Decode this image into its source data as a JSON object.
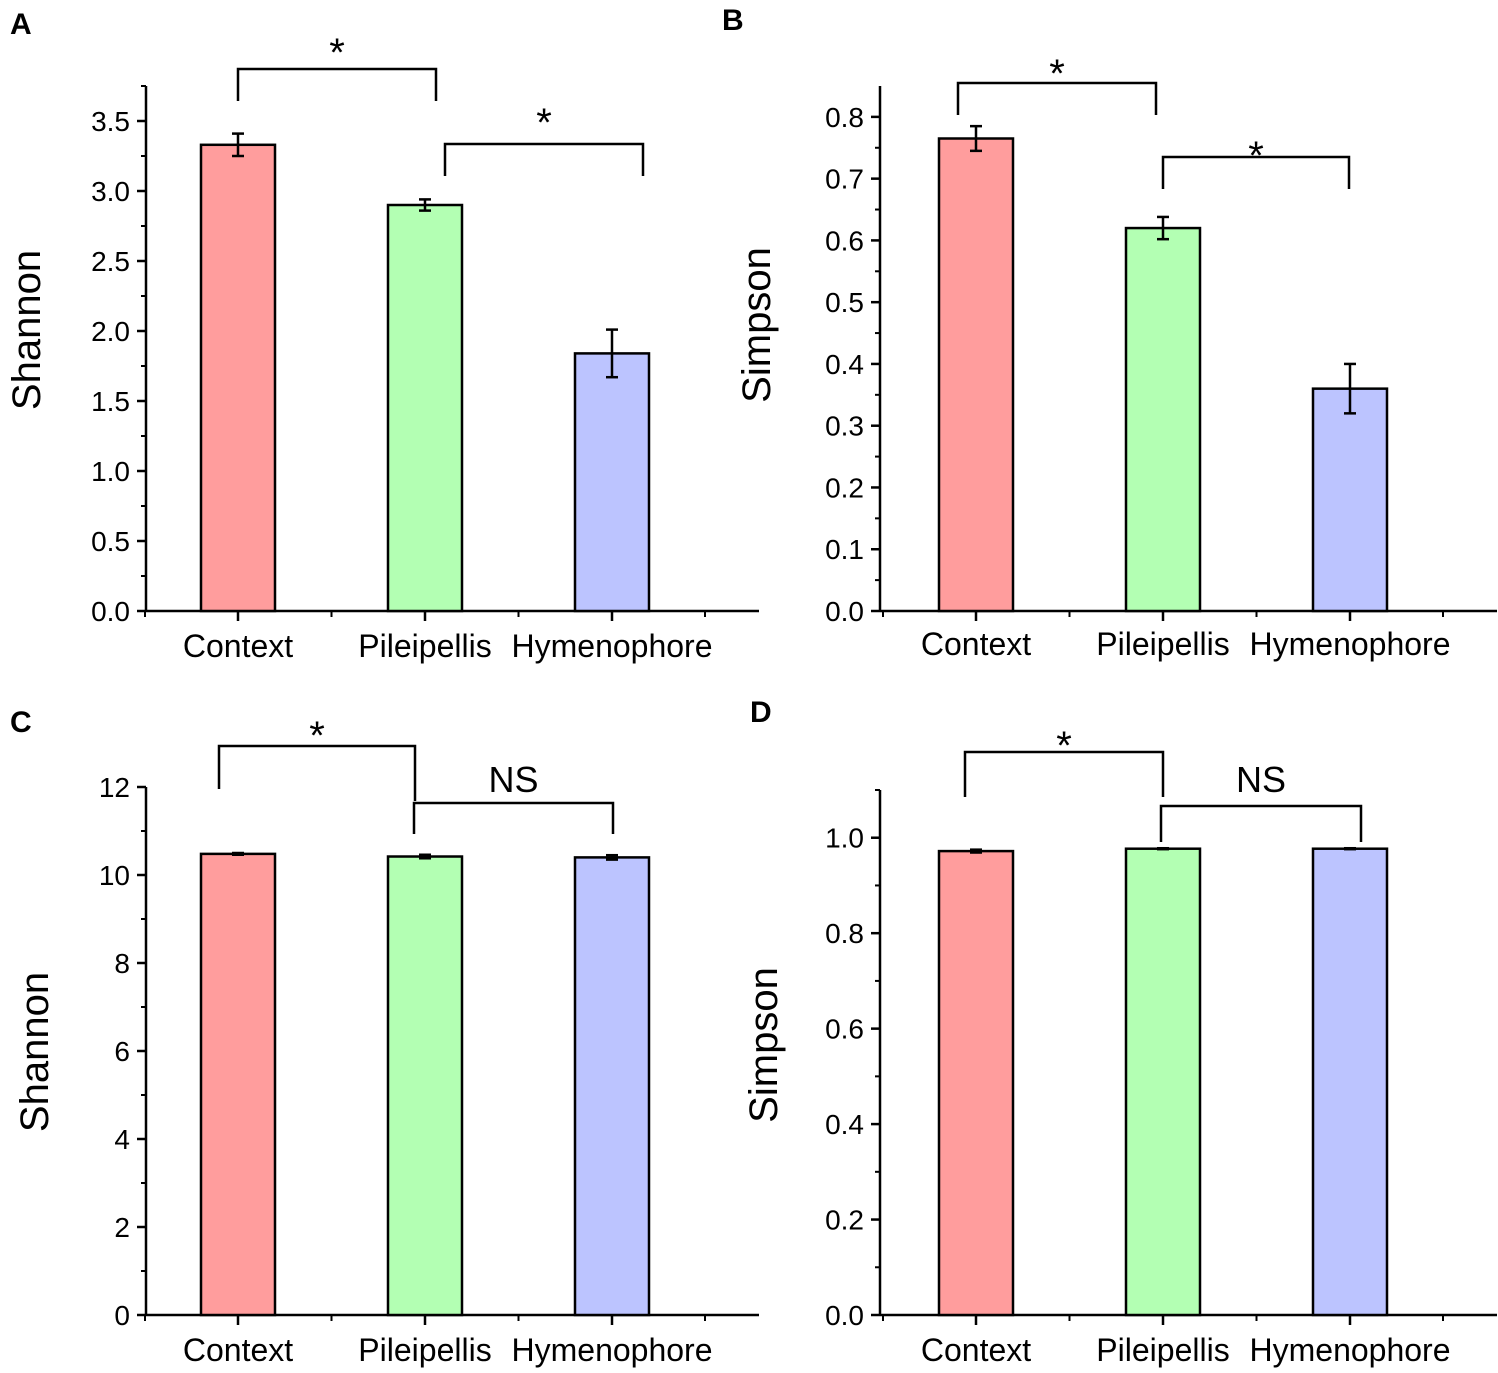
{
  "colors": {
    "context": "#ff9d9d",
    "pileipellis": "#b3ffb3",
    "hymenophore": "#bcc4ff",
    "axis": "#000000"
  },
  "chart_data": [
    {
      "panel": "A",
      "type": "bar",
      "categories": [
        "Context",
        "Pileipellis",
        "Hymenophore"
      ],
      "values": [
        3.33,
        2.9,
        1.84
      ],
      "errors": [
        0.08,
        0.04,
        0.17
      ],
      "ylabel": "Shannon",
      "xlabel": "",
      "ylim": [
        0,
        3.75
      ],
      "yticks": [
        "0.0",
        "0.5",
        "1.0",
        "1.5",
        "2.0",
        "2.5",
        "3.0",
        "3.5"
      ],
      "comparisons": [
        {
          "from": 0,
          "to": 1,
          "label": "*"
        },
        {
          "from": 1,
          "to": 2,
          "label": "*"
        }
      ]
    },
    {
      "panel": "B",
      "type": "bar",
      "categories": [
        "Context",
        "Pileipellis",
        "Hymenophore"
      ],
      "values": [
        0.765,
        0.62,
        0.36
      ],
      "errors": [
        0.02,
        0.018,
        0.04
      ],
      "ylabel": "Simpson",
      "xlabel": "",
      "ylim": [
        0,
        0.85
      ],
      "yticks": [
        "0.0",
        "0.1",
        "0.2",
        "0.3",
        "0.4",
        "0.5",
        "0.6",
        "0.7",
        "0.8"
      ],
      "comparisons": [
        {
          "from": 0,
          "to": 1,
          "label": "*"
        },
        {
          "from": 1,
          "to": 2,
          "label": "*"
        }
      ]
    },
    {
      "panel": "C",
      "type": "bar",
      "categories": [
        "Context",
        "Pileipellis",
        "Hymenophore"
      ],
      "values": [
        10.48,
        10.42,
        10.4
      ],
      "errors": [
        0.02,
        0.04,
        0.05
      ],
      "ylabel": "Shannon",
      "xlabel": "",
      "ylim": [
        0,
        12
      ],
      "yticks": [
        "0",
        "2",
        "4",
        "6",
        "8",
        "10",
        "12"
      ],
      "comparisons": [
        {
          "from": 0,
          "to": 1,
          "label": "*"
        },
        {
          "from": 1,
          "to": 2,
          "label": "NS"
        }
      ]
    },
    {
      "panel": "D",
      "type": "bar",
      "categories": [
        "Context",
        "Pileipellis",
        "Hymenophore"
      ],
      "values": [
        0.972,
        0.977,
        0.977
      ],
      "errors": [
        0.003,
        0.001,
        0.001
      ],
      "ylabel": "Simpson",
      "xlabel": "",
      "ylim": [
        0,
        1.1
      ],
      "yticks": [
        "0.0",
        "0.2",
        "0.4",
        "0.6",
        "0.8",
        "1.0"
      ],
      "comparisons": [
        {
          "from": 0,
          "to": 1,
          "label": "*"
        },
        {
          "from": 1,
          "to": 2,
          "label": "NS"
        }
      ]
    }
  ]
}
